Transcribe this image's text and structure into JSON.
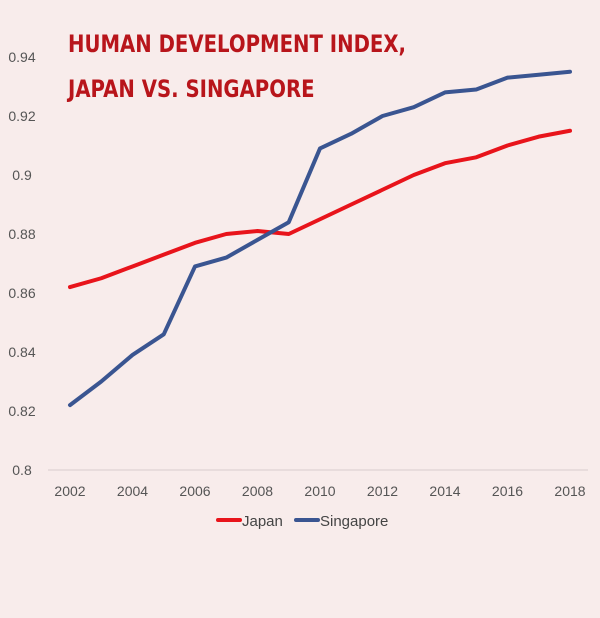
{
  "chart_data": {
    "type": "line",
    "title_lines": [
      "HUMAN DEVELOPMENT INDEX,",
      "JAPAN VS. SINGAPORE"
    ],
    "xlabel": "",
    "ylabel": "",
    "x": [
      2002,
      2003,
      2004,
      2005,
      2006,
      2007,
      2008,
      2009,
      2010,
      2011,
      2012,
      2013,
      2014,
      2015,
      2016,
      2017,
      2018
    ],
    "x_tick_labels": [
      "2002",
      "2004",
      "2006",
      "2008",
      "2010",
      "2012",
      "2014",
      "2016",
      "2018"
    ],
    "y_tick_labels": [
      "0.8",
      "0.82",
      "0.84",
      "0.86",
      "0.88",
      "0.9",
      "0.92",
      "0.94"
    ],
    "ylim": [
      0.8,
      0.94
    ],
    "xlim": [
      2002,
      2018
    ],
    "grid": false,
    "legend_position": "bottom-center",
    "series": [
      {
        "name": "Japan",
        "color": "#e8141b",
        "values": [
          0.862,
          0.865,
          0.869,
          0.873,
          0.877,
          0.88,
          0.881,
          0.88,
          0.885,
          0.89,
          0.895,
          0.9,
          0.904,
          0.906,
          0.91,
          0.913,
          0.915
        ]
      },
      {
        "name": "Singapore",
        "color": "#3a5591",
        "values": [
          0.822,
          0.83,
          0.839,
          0.846,
          0.869,
          0.872,
          0.878,
          0.884,
          0.909,
          0.914,
          0.92,
          0.923,
          0.928,
          0.929,
          0.933,
          0.934,
          0.935
        ]
      }
    ]
  }
}
